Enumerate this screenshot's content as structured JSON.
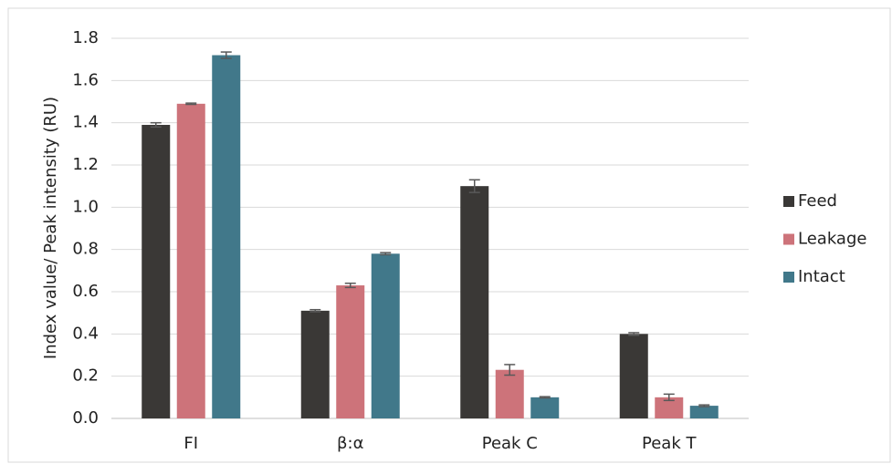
{
  "chart_data": {
    "type": "bar",
    "ylabel": "Index value/ Peak intensity (RU)",
    "categories": [
      "FI",
      "β:α",
      "Peak C",
      "Peak T"
    ],
    "series": [
      {
        "name": "Feed",
        "color": "#3a3836",
        "values": [
          1.39,
          0.51,
          1.1,
          0.4
        ],
        "errors": [
          0.01,
          0.005,
          0.03,
          0.006
        ]
      },
      {
        "name": "Leakage",
        "color": "#cd737a",
        "values": [
          1.49,
          0.63,
          0.23,
          0.1
        ],
        "errors": [
          0.003,
          0.01,
          0.025,
          0.015
        ]
      },
      {
        "name": "Intact",
        "color": "#41788a",
        "values": [
          1.72,
          0.78,
          0.1,
          0.06
        ],
        "errors": [
          0.015,
          0.005,
          0.003,
          0.004
        ]
      }
    ],
    "ylim": [
      0,
      1.8
    ],
    "yticks": [
      {
        "value": 0,
        "label": "0.0"
      },
      0.2,
      0.4,
      0.6,
      0.8,
      {
        "value": 1,
        "label": "1.0"
      },
      1.2,
      1.4,
      1.6,
      1.8
    ],
    "grid": true,
    "legend": "right"
  }
}
